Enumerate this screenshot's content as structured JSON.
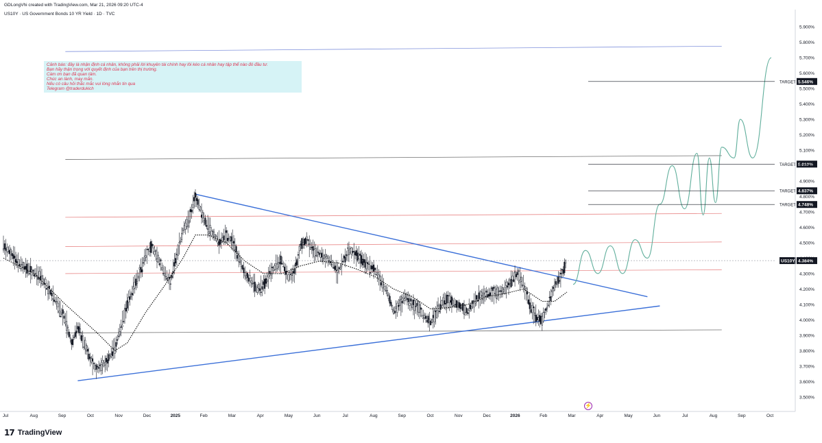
{
  "header": {
    "created_by": "GDLongVhi created with TradingView.com, Mar 21, 2026 09:20 UTC-4",
    "symbol_line": "US10Y · US Government Bonds 10 YR Yield · 1D · TVC"
  },
  "note": {
    "lines": [
      "Cảnh báo: đây là nhận định cá nhân, không phải lời khuyên tài chính hay lôi kéo cá nhân hay tập thể nào đó đầu tư.",
      "Bạn hãy thận trọng với quyết định của bạn trên thị trường.",
      "Cám ơn bạn đã quan tâm.",
      "Chúc an lành, may mắn.",
      "Nếu có câu hỏi thắc mắc vui lòng nhắn tin qua",
      "Telegram @traderdukich"
    ]
  },
  "brand": {
    "logo": "17",
    "name": "TradingView"
  },
  "colors": {
    "candle": "#131722",
    "sma": "#000000",
    "trendline": "#3a6fd8",
    "red_level": "#e57373",
    "grey_level": "#555555",
    "projection": "#5fae9b",
    "top_line": "#6b7fd6"
  },
  "chart_data": {
    "type": "candlestick",
    "symbol": "US10Y",
    "title": "US Government Bonds 10 YR Yield · 1D · TVC",
    "x_labels": [
      "Jul",
      "Aug",
      "Sep",
      "Oct",
      "Nov",
      "Dec",
      "2025",
      "Feb",
      "Mar",
      "Apr",
      "May",
      "Jun",
      "Jul",
      "Aug",
      "Sep",
      "Oct",
      "Nov",
      "Dec",
      "2026",
      "Feb",
      "Mar",
      "Apr",
      "May",
      "Jun",
      "Jul",
      "Aug",
      "Sep",
      "Oct"
    ],
    "y_ticks": [
      "3.500%",
      "3.600%",
      "3.700%",
      "3.800%",
      "3.900%",
      "4.000%",
      "4.100%",
      "4.200%",
      "4.300%",
      "4.400%",
      "4.500%",
      "4.600%",
      "4.700%",
      "4.800%",
      "4.900%",
      "5.000%",
      "5.100%",
      "5.200%",
      "5.300%",
      "5.400%",
      "5.500%",
      "5.600%",
      "5.700%",
      "5.800%",
      "5.900%"
    ],
    "ylim": [
      3.45,
      5.95
    ],
    "current": {
      "label": "US10Y",
      "value": "4.384%",
      "y": 4.384
    },
    "targets": [
      {
        "label": "TARGET",
        "value": "5.546%",
        "y": 5.546
      },
      {
        "label": "TARGET",
        "value": "5.010%",
        "y": 5.01
      },
      {
        "label": "TARGET",
        "value": "4.837%",
        "y": 4.837
      },
      {
        "label": "TARGET",
        "value": "4.748%",
        "y": 4.748
      }
    ],
    "price_path": [
      [
        0,
        4.48
      ],
      [
        3,
        4.35
      ],
      [
        6,
        4.28
      ],
      [
        8,
        4.15
      ],
      [
        10,
        4.0
      ],
      [
        11,
        3.85
      ],
      [
        12,
        3.95
      ],
      [
        13,
        3.85
      ],
      [
        14,
        3.75
      ],
      [
        15,
        3.68
      ],
      [
        16,
        3.7
      ],
      [
        17,
        3.75
      ],
      [
        18,
        3.82
      ],
      [
        19,
        3.95
      ],
      [
        20,
        4.1
      ],
      [
        21,
        4.2
      ],
      [
        22,
        4.3
      ],
      [
        23,
        4.42
      ],
      [
        24,
        4.48
      ],
      [
        25,
        4.4
      ],
      [
        26,
        4.3
      ],
      [
        27,
        4.25
      ],
      [
        28,
        4.42
      ],
      [
        29,
        4.58
      ],
      [
        30,
        4.65
      ],
      [
        31,
        4.8
      ],
      [
        32,
        4.7
      ],
      [
        33,
        4.6
      ],
      [
        34,
        4.55
      ],
      [
        35,
        4.5
      ],
      [
        36,
        4.55
      ],
      [
        37,
        4.5
      ],
      [
        38,
        4.4
      ],
      [
        39,
        4.3
      ],
      [
        40,
        4.25
      ],
      [
        41,
        4.2
      ],
      [
        42,
        4.22
      ],
      [
        43,
        4.3
      ],
      [
        44,
        4.35
      ],
      [
        45,
        4.38
      ],
      [
        46,
        4.28
      ],
      [
        47,
        4.3
      ],
      [
        48,
        4.48
      ],
      [
        49,
        4.52
      ],
      [
        50,
        4.45
      ],
      [
        51,
        4.43
      ],
      [
        52,
        4.4
      ],
      [
        53,
        4.38
      ],
      [
        54,
        4.3
      ],
      [
        55,
        4.4
      ],
      [
        56,
        4.45
      ],
      [
        57,
        4.42
      ],
      [
        58,
        4.38
      ],
      [
        59,
        4.35
      ],
      [
        60,
        4.32
      ],
      [
        61,
        4.25
      ],
      [
        62,
        4.18
      ],
      [
        63,
        4.05
      ],
      [
        64,
        4.1
      ],
      [
        65,
        4.15
      ],
      [
        66,
        4.1
      ],
      [
        67,
        4.08
      ],
      [
        68,
        4.02
      ],
      [
        69,
        3.98
      ],
      [
        70,
        4.05
      ],
      [
        71,
        4.12
      ],
      [
        72,
        4.13
      ],
      [
        73,
        4.1
      ],
      [
        74,
        4.08
      ],
      [
        75,
        4.05
      ],
      [
        76,
        4.12
      ],
      [
        77,
        4.15
      ],
      [
        78,
        4.17
      ],
      [
        79,
        4.18
      ],
      [
        80,
        4.17
      ],
      [
        81,
        4.2
      ],
      [
        82,
        4.25
      ],
      [
        83,
        4.3
      ],
      [
        84,
        4.22
      ],
      [
        85,
        4.1
      ],
      [
        86,
        4.02
      ],
      [
        87,
        4.0
      ],
      [
        88,
        4.1
      ],
      [
        89,
        4.22
      ],
      [
        90,
        4.28
      ],
      [
        91,
        4.384
      ]
    ],
    "sma_path": [
      [
        0,
        4.4
      ],
      [
        5,
        4.3
      ],
      [
        10,
        4.1
      ],
      [
        15,
        3.92
      ],
      [
        18,
        3.8
      ],
      [
        20,
        3.85
      ],
      [
        23,
        4.05
      ],
      [
        26,
        4.22
      ],
      [
        29,
        4.4
      ],
      [
        31,
        4.55
      ],
      [
        33,
        4.55
      ],
      [
        36,
        4.5
      ],
      [
        39,
        4.38
      ],
      [
        42,
        4.3
      ],
      [
        45,
        4.3
      ],
      [
        48,
        4.35
      ],
      [
        51,
        4.38
      ],
      [
        54,
        4.37
      ],
      [
        57,
        4.33
      ],
      [
        60,
        4.28
      ],
      [
        63,
        4.2
      ],
      [
        66,
        4.15
      ],
      [
        69,
        4.07
      ],
      [
        72,
        4.08
      ],
      [
        75,
        4.1
      ],
      [
        78,
        4.15
      ],
      [
        81,
        4.17
      ],
      [
        84,
        4.2
      ],
      [
        87,
        4.12
      ],
      [
        89,
        4.12
      ],
      [
        91,
        4.18
      ]
    ],
    "trendlines": [
      {
        "name": "upper",
        "from": [
          31,
          4.815
        ],
        "to": [
          104,
          4.15
        ]
      },
      {
        "name": "lower",
        "from": [
          12,
          3.605
        ],
        "to": [
          106,
          4.09
        ]
      }
    ],
    "horizontal_levels": [
      {
        "kind": "grey",
        "from": 10,
        "to": 116,
        "y1": 3.915,
        "y2": 3.935
      },
      {
        "kind": "red",
        "from": 10,
        "to": 116,
        "y1": 4.3,
        "y2": 4.325
      },
      {
        "kind": "red",
        "from": 10,
        "to": 116,
        "y1": 4.475,
        "y2": 4.505
      },
      {
        "kind": "red",
        "from": 10,
        "to": 116,
        "y1": 4.665,
        "y2": 4.69
      },
      {
        "kind": "grey",
        "from": 10,
        "to": 116,
        "y1": 5.04,
        "y2": 5.065
      },
      {
        "kind": "top",
        "from": 10,
        "to": 116,
        "y1": 5.74,
        "y2": 5.775
      }
    ],
    "projection": [
      [
        92,
        4.23
      ],
      [
        94,
        4.45
      ],
      [
        96,
        4.3
      ],
      [
        98,
        4.48
      ],
      [
        100,
        4.3
      ],
      [
        102,
        4.52
      ],
      [
        104,
        4.4
      ],
      [
        106,
        4.75
      ],
      [
        108,
        5.0
      ],
      [
        110,
        4.72
      ],
      [
        112,
        5.08
      ],
      [
        113,
        4.68
      ],
      [
        114,
        5.05
      ],
      [
        115,
        4.76
      ],
      [
        116,
        5.12
      ],
      [
        118,
        5.05
      ],
      [
        119,
        5.3
      ],
      [
        121,
        5.05
      ],
      [
        124,
        5.7
      ]
    ]
  }
}
